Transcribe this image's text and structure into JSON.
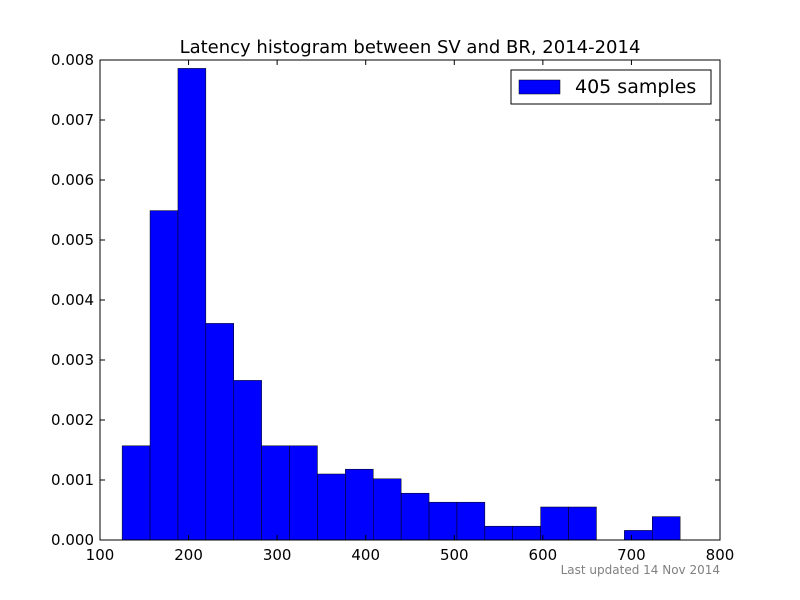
{
  "chart_data": {
    "type": "bar",
    "title": "Latency histogram between SV and BR, 2014-2014",
    "xlabel": "",
    "ylabel": "",
    "xlim": [
      100,
      800
    ],
    "ylim": [
      0,
      0.008
    ],
    "x_ticks": [
      100,
      200,
      300,
      400,
      500,
      600,
      700,
      800
    ],
    "x_tick_labels": [
      "100",
      "200",
      "300",
      "400",
      "500",
      "600",
      "700",
      "800"
    ],
    "y_ticks": [
      0,
      0.001,
      0.002,
      0.003,
      0.004,
      0.005,
      0.006,
      0.007,
      0.008
    ],
    "y_tick_labels": [
      "0.000",
      "0.001",
      "0.002",
      "0.003",
      "0.004",
      "0.005",
      "0.006",
      "0.007",
      "0.008"
    ],
    "grid": false,
    "legend_position": "top-right",
    "series": [
      {
        "name": "405 samples",
        "color": "#0000ff",
        "bin_edges": [
          125,
          156.5,
          188,
          219.5,
          251,
          282.5,
          314,
          345.5,
          377,
          408.5,
          440,
          471.5,
          503,
          534.5,
          566,
          597.5,
          629,
          660.5,
          692,
          723.5,
          755
        ],
        "values": [
          0.00157,
          0.00549,
          0.00786,
          0.00361,
          0.00266,
          0.00157,
          0.00157,
          0.0011,
          0.00118,
          0.00102,
          0.00078,
          0.00063,
          0.00063,
          0.00023,
          0.00023,
          0.00055,
          0.00055,
          0,
          0.00016,
          0.00039
        ]
      }
    ],
    "annotation": "Last updated 14 Nov 2014"
  }
}
